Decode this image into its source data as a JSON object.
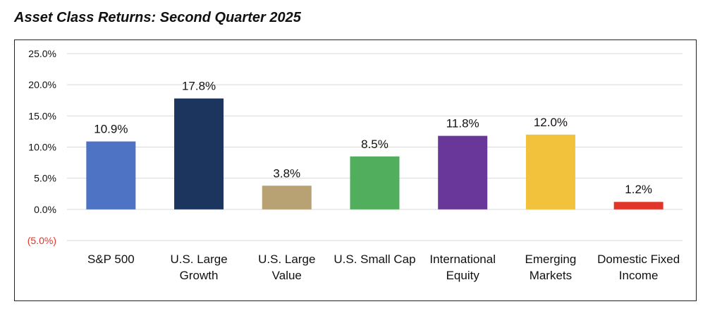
{
  "title": "Asset Class Returns: Second Quarter 2025",
  "chart_data": {
    "type": "bar",
    "title": "Asset Class Returns: Second Quarter 2025",
    "categories": [
      [
        "S&P 500"
      ],
      [
        "U.S. Large",
        "Growth"
      ],
      [
        "U.S. Large",
        "Value"
      ],
      [
        "U.S. Small Cap"
      ],
      [
        "International",
        "Equity"
      ],
      [
        "Emerging",
        "Markets"
      ],
      [
        "Domestic Fixed",
        "Income"
      ]
    ],
    "values": [
      10.9,
      17.8,
      3.8,
      8.5,
      11.8,
      12.0,
      1.2
    ],
    "data_labels": [
      "10.9%",
      "17.8%",
      "3.8%",
      "8.5%",
      "11.8%",
      "12.0%",
      "1.2%"
    ],
    "bar_colors": [
      "#4e72c4",
      "#1c355e",
      "#b8a172",
      "#50ae5c",
      "#69369a",
      "#f3c23c",
      "#e2352a"
    ],
    "ylim": [
      -5,
      25
    ],
    "yticks": [
      25,
      20,
      15,
      10,
      5,
      0,
      -5
    ],
    "ytick_labels": [
      "25.0%",
      "20.0%",
      "15.0%",
      "10.0%",
      "5.0%",
      "0.0%",
      "(5.0%)"
    ],
    "negative_tick_color": "#e2352a",
    "grid": true,
    "xlabel": "",
    "ylabel": ""
  }
}
